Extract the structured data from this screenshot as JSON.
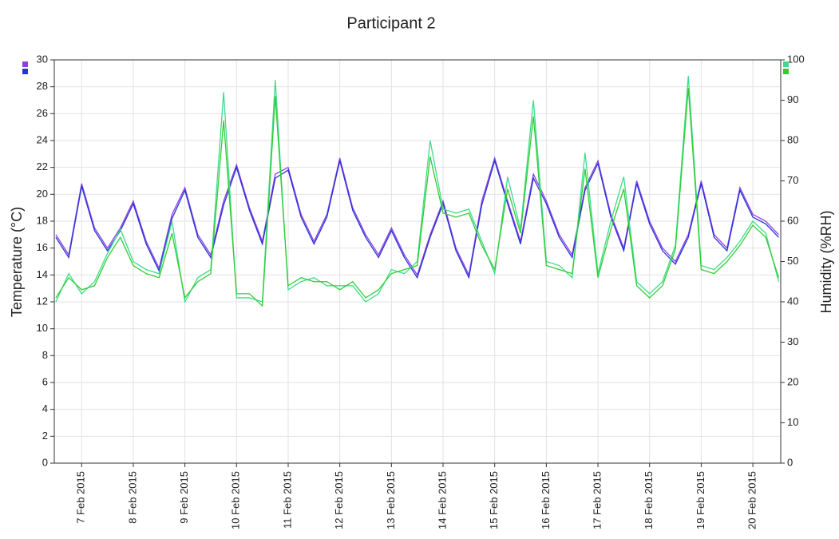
{
  "chart_data": {
    "type": "line",
    "title": "Participant 2",
    "y_label": "Temperature (°C)",
    "y2_label": "Humidity (%RH)",
    "x": [
      6.5,
      6.75,
      7,
      7.25,
      7.5,
      7.75,
      8,
      8.25,
      8.5,
      8.75,
      9,
      9.25,
      9.5,
      9.75,
      10,
      10.25,
      10.5,
      10.75,
      11,
      11.25,
      11.5,
      11.75,
      12,
      12.25,
      12.5,
      12.75,
      13,
      13.25,
      13.5,
      13.75,
      14,
      14.25,
      14.5,
      14.75,
      15,
      15.25,
      15.5,
      15.75,
      16,
      16.25,
      16.5,
      16.75,
      17,
      17.25,
      17.5,
      17.75,
      18,
      18.25,
      18.5,
      18.75,
      19,
      19.25,
      19.5,
      19.75,
      20,
      20.25,
      20.5
    ],
    "xlim": [
      6.47,
      20.54
    ],
    "xticks": [
      {
        "value": 7,
        "label": "7 Feb 2015"
      },
      {
        "value": 8,
        "label": "8 Feb 2015"
      },
      {
        "value": 9,
        "label": "9 Feb 2015"
      },
      {
        "value": 10,
        "label": "10 Feb 2015"
      },
      {
        "value": 11,
        "label": "11 Feb 2015"
      },
      {
        "value": 12,
        "label": "12 Feb 2015"
      },
      {
        "value": 13,
        "label": "13 Feb 2015"
      },
      {
        "value": 14,
        "label": "14 Feb 2015"
      },
      {
        "value": 15,
        "label": "15 Feb 2015"
      },
      {
        "value": 16,
        "label": "16 Feb 2015"
      },
      {
        "value": 17,
        "label": "17 Feb 2015"
      },
      {
        "value": 18,
        "label": "18 Feb 2015"
      },
      {
        "value": 19,
        "label": "19 Feb 2015"
      },
      {
        "value": 20,
        "label": "20 Feb 2015"
      }
    ],
    "ylim": [
      0,
      30
    ],
    "yticks": [
      0,
      2,
      4,
      6,
      8,
      10,
      12,
      14,
      16,
      18,
      20,
      22,
      24,
      26,
      28,
      30
    ],
    "y2lim": [
      0,
      100
    ],
    "y2ticks": [
      0,
      10,
      20,
      30,
      40,
      50,
      60,
      70,
      80,
      90,
      100
    ],
    "grid": true,
    "series": [
      {
        "color": "#8e3fe0",
        "values": [
          17,
          15.5,
          20.8,
          17.5,
          16,
          17.5,
          19.5,
          16.5,
          14.5,
          18.5,
          20.5,
          17,
          15.5,
          19.5,
          22.2,
          19,
          16.5,
          21.5,
          22,
          18.5,
          16.5,
          18.5,
          22.7,
          19,
          17,
          15.5,
          17.5,
          15.5,
          14,
          17,
          19.5,
          16,
          14,
          19.5,
          22.7,
          19.5,
          16.5,
          21.5,
          19.5,
          17,
          15.5,
          20.5,
          22.5,
          18.5,
          16,
          21,
          18,
          16,
          15,
          17,
          21,
          17,
          16,
          20.5,
          18.5,
          18,
          17
        ]
      },
      {
        "color": "#2634d8",
        "values": [
          16.8,
          15.3,
          20.6,
          17.3,
          15.8,
          17.3,
          19.3,
          16.3,
          14.3,
          18.2,
          20.3,
          16.8,
          15.3,
          19.2,
          22,
          18.8,
          16.3,
          21.2,
          21.8,
          18.3,
          16.3,
          18.3,
          22.5,
          18.8,
          16.8,
          15.3,
          17.3,
          15.3,
          13.8,
          16.8,
          19.3,
          15.8,
          13.8,
          19.2,
          22.5,
          19.3,
          16.3,
          21.2,
          19.3,
          16.8,
          15.3,
          20.3,
          22.3,
          18.3,
          15.8,
          20.8,
          17.8,
          15.8,
          14.8,
          16.8,
          20.8,
          16.8,
          15.8,
          20.3,
          18.3,
          17.8,
          16.8
        ]
      },
      {
        "color": "#3cdc8c",
        "axis": "y2",
        "values": [
          40,
          47,
          42,
          45,
          52,
          58,
          50,
          48,
          47,
          60,
          40,
          46,
          48,
          92,
          41,
          41,
          40,
          95,
          43,
          45,
          46,
          44,
          44,
          44,
          40,
          42,
          48,
          47,
          50,
          80,
          63,
          62,
          63,
          55,
          47,
          71,
          58,
          90,
          50,
          49,
          46,
          77,
          47,
          60,
          71,
          45,
          42,
          45,
          54,
          96,
          49,
          48,
          51,
          55,
          60,
          57,
          45
        ]
      },
      {
        "color": "#33cc33",
        "axis": "y2",
        "values": [
          41,
          46,
          43,
          44,
          51,
          56,
          49,
          47,
          46,
          57,
          41,
          45,
          47,
          85,
          42,
          42,
          39,
          91,
          44,
          46,
          45,
          45,
          43,
          45,
          41,
          43,
          47,
          48,
          49,
          76,
          62,
          61,
          62,
          54,
          48,
          68,
          57,
          86,
          49,
          48,
          47,
          73,
          46,
          58,
          68,
          44,
          41,
          44,
          53,
          93,
          48,
          47,
          50,
          54,
          59,
          56,
          46
        ]
      }
    ]
  }
}
